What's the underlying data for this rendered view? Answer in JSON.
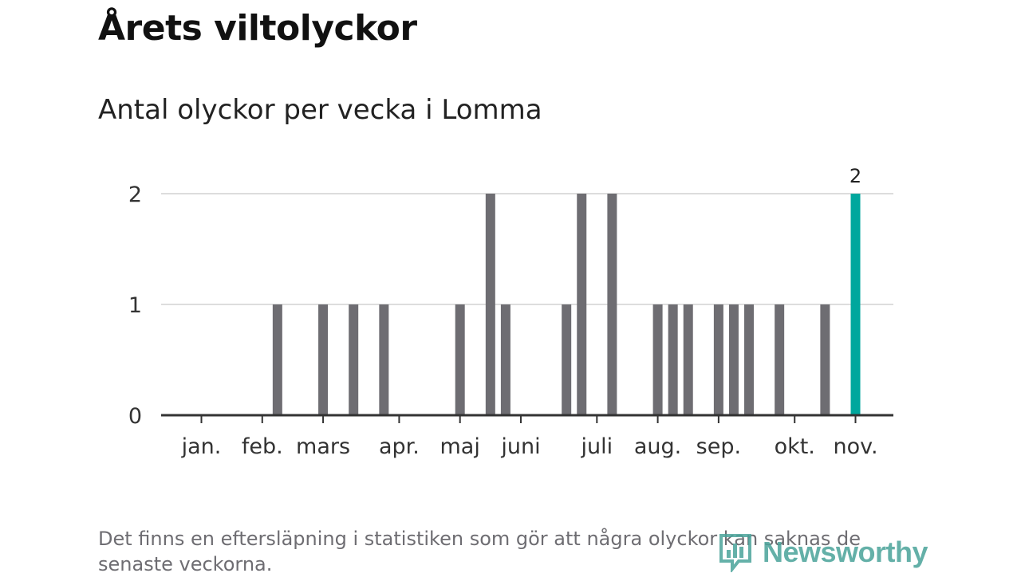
{
  "title": "Årets viltolyckor",
  "subtitle": "Antal olyckor per vecka i Lomma",
  "footnote": "Det finns en eftersläpning i statistiken som gör att några olyckor kan saknas de senaste veckorna.",
  "logo": {
    "text": "Newsworthy",
    "icon": "bar-chart-speech-bubble-icon"
  },
  "colors": {
    "bar": "#6e6d72",
    "highlight": "#00a79d",
    "grid": "#dddddd",
    "axis": "#333333"
  },
  "chart_data": {
    "type": "bar",
    "title": "Antal olyckor per vecka i Lomma",
    "xlabel": "",
    "ylabel": "",
    "ylim": [
      0,
      2
    ],
    "yticks": [
      0,
      1,
      2
    ],
    "grid": true,
    "month_labels": [
      "jan.",
      "feb.",
      "mars",
      "apr.",
      "maj",
      "juni",
      "juli",
      "aug.",
      "sep.",
      "okt.",
      "nov."
    ],
    "month_start_weeks": [
      1,
      5,
      9,
      14,
      18,
      22,
      27,
      31,
      35,
      40,
      44
    ],
    "weeks": [
      1,
      2,
      3,
      4,
      5,
      6,
      7,
      8,
      9,
      10,
      11,
      12,
      13,
      14,
      15,
      16,
      17,
      18,
      19,
      20,
      21,
      22,
      23,
      24,
      25,
      26,
      27,
      28,
      29,
      30,
      31,
      32,
      33,
      34,
      35,
      36,
      37,
      38,
      39,
      40,
      41,
      42,
      43,
      44,
      45
    ],
    "values": [
      0,
      0,
      0,
      0,
      0,
      1,
      0,
      0,
      1,
      0,
      1,
      0,
      1,
      0,
      0,
      0,
      0,
      1,
      0,
      2,
      1,
      0,
      0,
      0,
      1,
      2,
      0,
      2,
      0,
      0,
      1,
      1,
      1,
      0,
      1,
      1,
      1,
      0,
      1,
      0,
      0,
      1,
      0,
      2,
      0
    ],
    "highlight_week": 44,
    "highlight_label": "2"
  }
}
